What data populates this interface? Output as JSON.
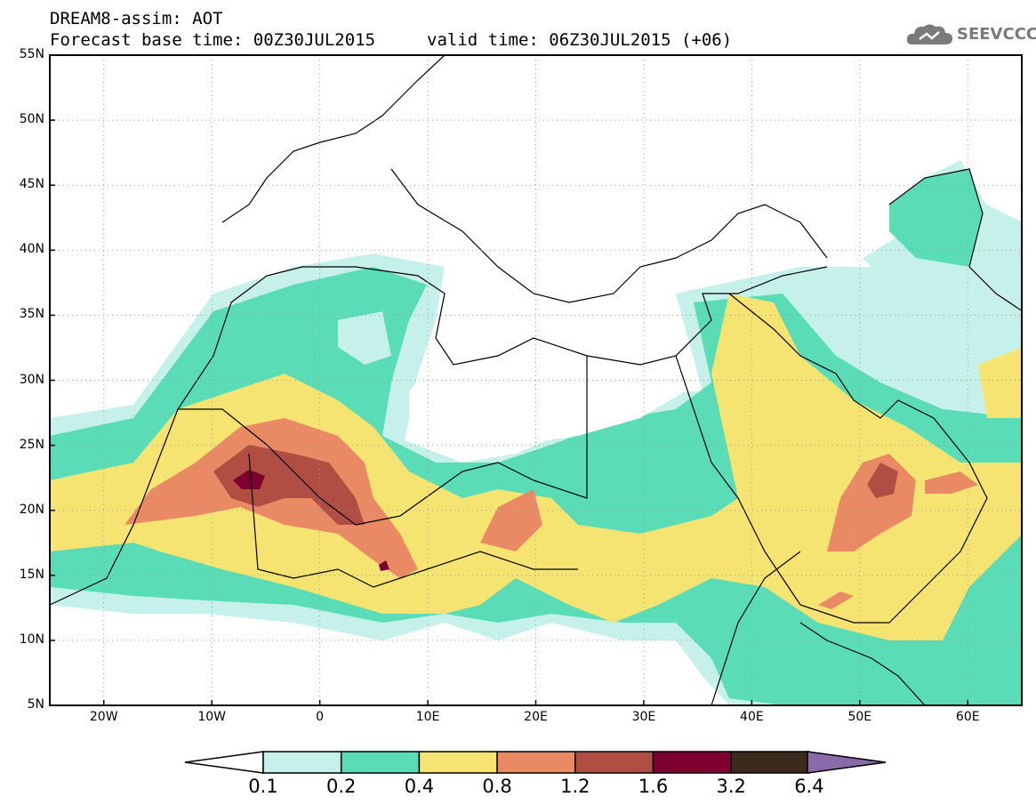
{
  "header": {
    "model": "DREAM8-assim: AOT",
    "base_time": "Forecast base time: 00Z30JUL2015",
    "valid_time": "valid time: 06Z30JUL2015 (+06)"
  },
  "logo": {
    "text": "SEEVCCC",
    "icon": "cloud-logo-icon"
  },
  "map": {
    "lat_labels": [
      "55N",
      "50N",
      "45N",
      "40N",
      "35N",
      "30N",
      "25N",
      "20N",
      "15N",
      "10N",
      "5N"
    ],
    "lon_labels": [
      "20W",
      "10W",
      "0",
      "10E",
      "20E",
      "30E",
      "40E",
      "50E",
      "60E"
    ],
    "lon_range": [
      -25,
      65
    ],
    "lat_range": [
      5,
      55
    ]
  },
  "colorbar": {
    "labels": [
      "0.1",
      "0.2",
      "0.4",
      "0.8",
      "1.2",
      "1.6",
      "3.2",
      "6.4"
    ],
    "colors": {
      "below": "#ffffff",
      "c1": "#c6f0ea",
      "c2": "#5adcb6",
      "c3": "#f5e472",
      "c4": "#e98a64",
      "c5": "#b04e44",
      "c6": "#7e0030",
      "c7": "#3d2a1e",
      "above": "#8a6aa8"
    }
  }
}
